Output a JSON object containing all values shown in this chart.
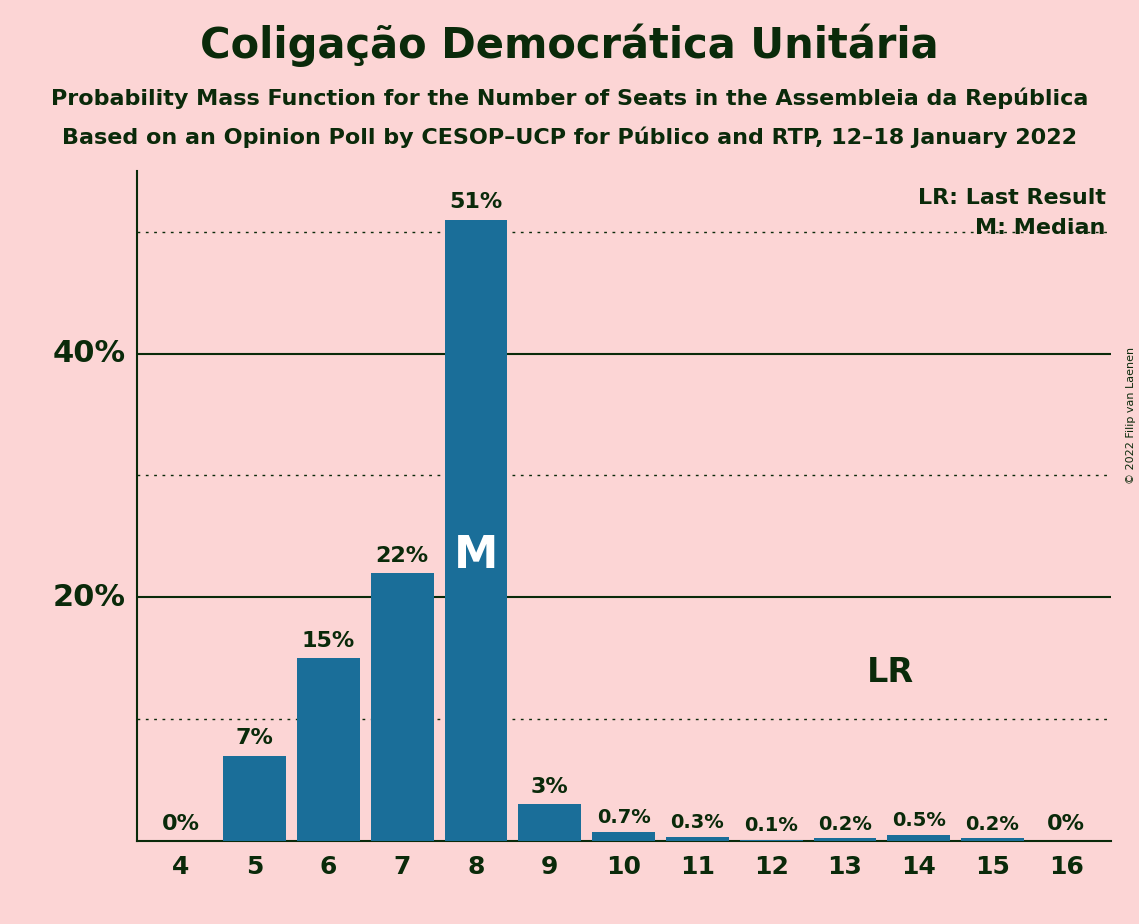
{
  "title": "Coligação Democrática Unitária",
  "subtitle1": "Probability Mass Function for the Number of Seats in the Assembleia da República",
  "subtitle2": "Based on an Opinion Poll by CESOP–UCP for Público and RTP, 12–18 January 2022",
  "copyright": "© 2022 Filip van Laenen",
  "categories": [
    4,
    5,
    6,
    7,
    8,
    9,
    10,
    11,
    12,
    13,
    14,
    15,
    16
  ],
  "values": [
    0.0,
    7.0,
    15.0,
    22.0,
    51.0,
    3.0,
    0.7,
    0.3,
    0.1,
    0.2,
    0.5,
    0.2,
    0.0
  ],
  "labels": [
    "0%",
    "7%",
    "15%",
    "22%",
    "51%",
    "3%",
    "0.7%",
    "0.3%",
    "0.1%",
    "0.2%",
    "0.5%",
    "0.2%",
    "0%"
  ],
  "bar_color": "#1a6e99",
  "background_color": "#fcd5d5",
  "text_color": "#0a2a0a",
  "median_bar_index": 4,
  "lr_bar_index": 9,
  "median_label": "M",
  "lr_label": "LR",
  "legend_lr": "LR: Last Result",
  "legend_m": "M: Median",
  "ylim": [
    0,
    55
  ],
  "solid_yticks": [
    20,
    40
  ],
  "dotted_yticks": [
    10,
    30,
    50
  ],
  "title_fontsize": 30,
  "subtitle_fontsize": 16,
  "tick_fontsize": 18,
  "legend_fontsize": 16,
  "bar_label_fontsize": 16,
  "median_label_fontsize": 32,
  "lr_label_fontsize": 24,
  "ylabel_fontsize": 22
}
